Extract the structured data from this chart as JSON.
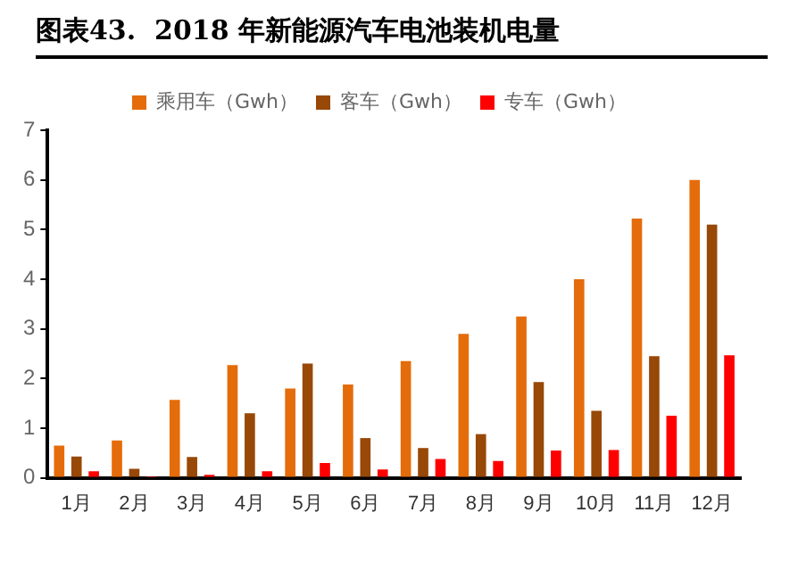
{
  "chart_data": {
    "type": "bar",
    "title": "图表43.  2018 年新能源汽车电池装机电量",
    "categories": [
      "1月",
      "2月",
      "3月",
      "4月",
      "5月",
      "6月",
      "7月",
      "8月",
      "9月",
      "10月",
      "11月",
      "12月"
    ],
    "series": [
      {
        "name": "乘用车（Gwh）",
        "color": "#e46c0a",
        "values": [
          0.65,
          0.75,
          1.57,
          2.27,
          1.8,
          1.88,
          2.35,
          2.9,
          3.25,
          4.0,
          5.22,
          6.0
        ]
      },
      {
        "name": "客车（Gwh）",
        "color": "#984807",
        "values": [
          0.43,
          0.18,
          0.42,
          1.3,
          2.3,
          0.8,
          0.6,
          0.88,
          1.93,
          1.35,
          2.45,
          5.1
        ]
      },
      {
        "name": "专车（Gwh）",
        "color": "#ff0000",
        "values": [
          0.13,
          0.03,
          0.06,
          0.13,
          0.3,
          0.17,
          0.38,
          0.34,
          0.55,
          0.56,
          1.25,
          2.47
        ]
      }
    ],
    "ylim": [
      0,
      7
    ],
    "yticks": [
      0,
      1,
      2,
      3,
      4,
      5,
      6,
      7
    ],
    "grid": false,
    "legend": "top"
  }
}
